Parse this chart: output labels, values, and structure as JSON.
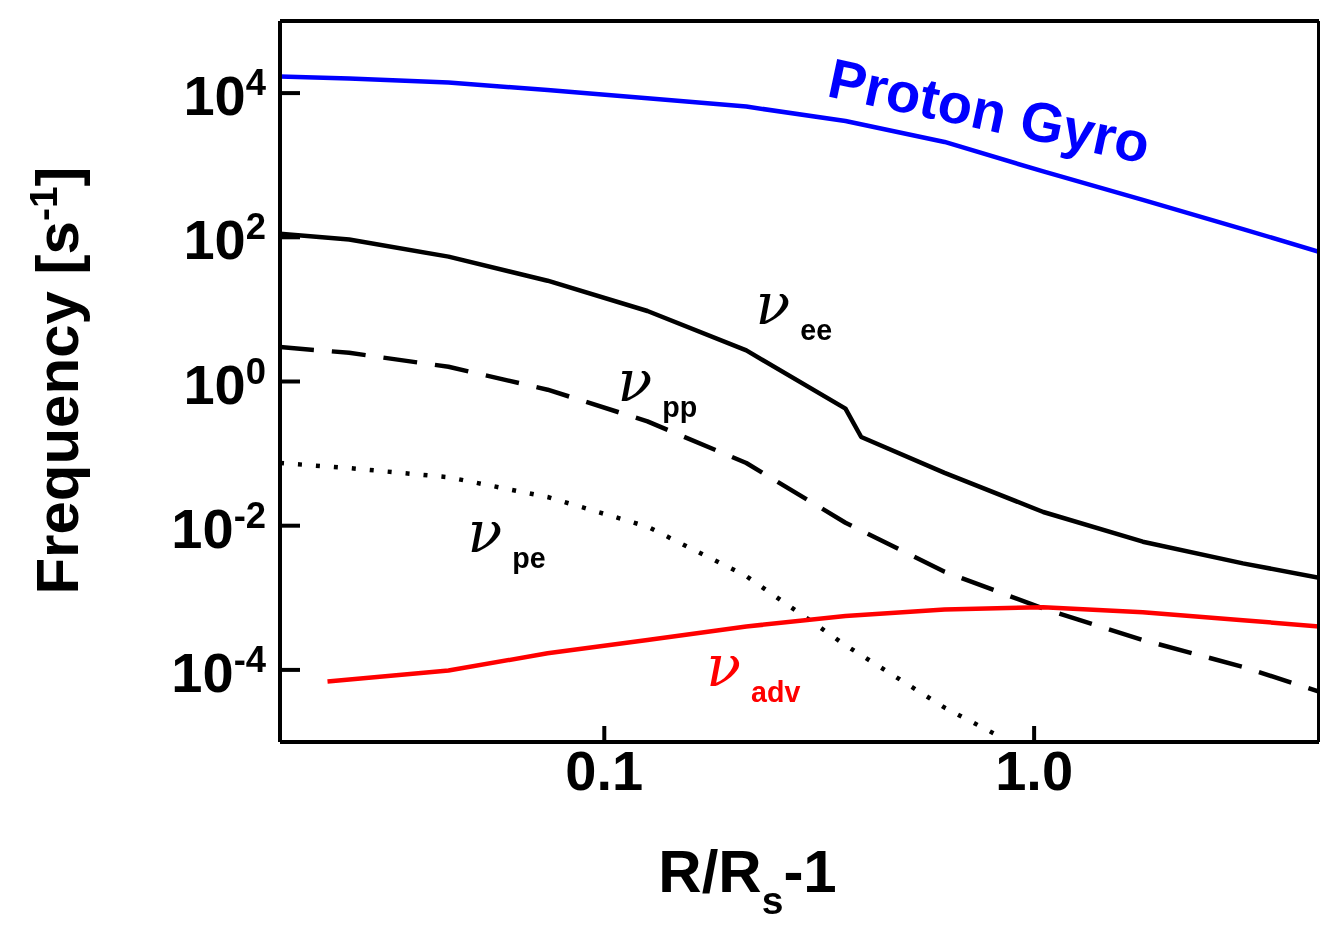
{
  "chart_data": {
    "type": "line",
    "xlabel": "R/R$_{s}$-1",
    "ylabel": "Frequency [s$^{-1}$]",
    "log": "xy",
    "marker": "none",
    "xlim": [
      0.0176,
      4.6
    ],
    "xticks": [
      {
        "value": 0.1,
        "label": "0.1"
      },
      {
        "value": 1,
        "label": "1.0"
      }
    ],
    "ylim": [
      1e-05,
      100000
    ],
    "yticks": [
      {
        "value": 0.0001,
        "label": "10$^{-4}$"
      },
      {
        "value": 0.01,
        "label": "10$^{-2}$"
      },
      {
        "value": 1,
        "label": "10$^{0}$"
      },
      {
        "value": 100,
        "label": "10$^{2}$"
      },
      {
        "value": 10000,
        "label": "10$^{4}$"
      }
    ],
    "series": [
      {
        "name": "Proton Gyro",
        "color": "#0000ff",
        "line_style": "solid",
        "x": [
          0.0176,
          0.0255,
          0.0434,
          0.0738,
          0.126,
          0.214,
          0.364,
          0.619,
          1.05,
          1.79,
          3.06,
          4.6
        ],
        "values": [
          17000,
          16000,
          14000,
          11000,
          8500,
          6500,
          4100,
          2100,
          820,
          330,
          130,
          63
        ]
      },
      {
        "name": "ν$_{ee}$",
        "color": "#000000",
        "line_style": "solid",
        "x": [
          0.0176,
          0.0255,
          0.0434,
          0.0738,
          0.126,
          0.214,
          0.364,
          0.396,
          0.619,
          1.05,
          1.79,
          3.06,
          4.6
        ],
        "values": [
          112,
          93,
          54,
          25,
          9.5,
          2.7,
          0.42,
          0.17,
          0.054,
          0.0155,
          0.006,
          0.003,
          0.0019
        ]
      },
      {
        "name": "ν$_{pp}$",
        "color": "#000000",
        "line_style": "dashed",
        "x": [
          0.0176,
          0.0255,
          0.0434,
          0.0738,
          0.126,
          0.214,
          0.364,
          0.619,
          1.05,
          1.79,
          3.06,
          4.6
        ],
        "values": [
          3.0,
          2.5,
          1.6,
          0.77,
          0.28,
          0.074,
          0.011,
          0.0023,
          0.00071,
          0.00026,
          0.00011,
          5e-05
        ]
      },
      {
        "name": "ν$_{pe}$",
        "color": "#000000",
        "line_style": "dotted",
        "x": [
          0.0176,
          0.0255,
          0.0434,
          0.0738,
          0.126,
          0.214,
          0.364,
          0.619,
          0.853
        ],
        "values": [
          0.074,
          0.063,
          0.047,
          0.025,
          0.0097,
          0.002,
          0.00022,
          3e-05,
          1.1e-05
        ]
      },
      {
        "name": "ν$_{adv}$",
        "color": "#ff0000",
        "line_style": "solid",
        "x": [
          0.0227,
          0.0434,
          0.0738,
          0.126,
          0.214,
          0.364,
          0.619,
          1.05,
          1.79,
          3.06,
          4.6
        ],
        "values": [
          6.9e-05,
          9.8e-05,
          0.00017,
          0.00026,
          0.0004,
          0.00056,
          0.00069,
          0.00074,
          0.00063,
          0.00049,
          0.0004
        ]
      }
    ]
  }
}
